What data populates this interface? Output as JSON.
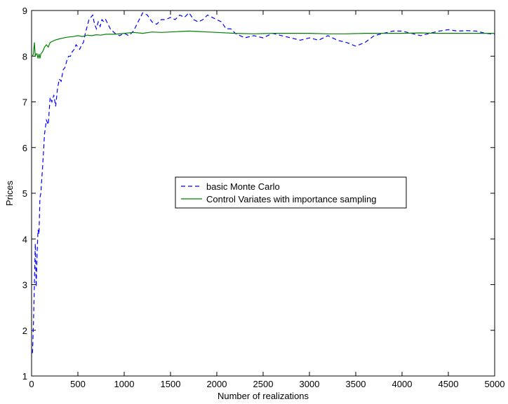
{
  "chart_data": {
    "type": "line",
    "title": "",
    "xlabel": "Number of realizations",
    "ylabel": "Prices",
    "xlim": [
      0,
      5000
    ],
    "ylim": [
      1,
      9
    ],
    "xticks": [
      0,
      500,
      1000,
      1500,
      2000,
      2500,
      3000,
      3500,
      4000,
      4500,
      5000
    ],
    "yticks": [
      1,
      2,
      3,
      4,
      5,
      6,
      7,
      8,
      9
    ],
    "grid": false,
    "legend_position": "center-right",
    "series": [
      {
        "name": "basic Monte Carlo",
        "style": "dashed",
        "color": "#0000ff",
        "x": [
          10,
          20,
          30,
          40,
          50,
          60,
          70,
          80,
          90,
          100,
          120,
          140,
          160,
          180,
          200,
          220,
          240,
          260,
          280,
          300,
          320,
          340,
          360,
          380,
          400,
          420,
          440,
          460,
          480,
          500,
          520,
          540,
          560,
          580,
          600,
          620,
          640,
          660,
          680,
          700,
          720,
          740,
          760,
          780,
          800,
          850,
          900,
          950,
          1000,
          1050,
          1100,
          1150,
          1200,
          1250,
          1300,
          1350,
          1400,
          1450,
          1500,
          1550,
          1600,
          1650,
          1700,
          1750,
          1800,
          1850,
          1900,
          1950,
          2000,
          2050,
          2100,
          2150,
          2200,
          2300,
          2400,
          2500,
          2600,
          2700,
          2800,
          2900,
          3000,
          3100,
          3200,
          3300,
          3400,
          3500,
          3600,
          3700,
          3800,
          3900,
          4000,
          4100,
          4200,
          4300,
          4400,
          4500,
          4600,
          4700,
          4800,
          4900,
          5000
        ],
        "values": [
          1.5,
          2.1,
          3.0,
          3.9,
          2.95,
          3.7,
          4.2,
          4.1,
          4.9,
          5.0,
          5.6,
          6.3,
          6.6,
          6.5,
          7.1,
          7.0,
          7.15,
          6.9,
          7.3,
          7.5,
          7.45,
          7.7,
          7.75,
          7.9,
          8.0,
          8.0,
          8.1,
          8.15,
          8.25,
          8.2,
          8.15,
          8.25,
          8.3,
          8.5,
          8.65,
          8.8,
          8.85,
          8.9,
          8.7,
          8.6,
          8.75,
          8.65,
          8.8,
          8.75,
          8.8,
          8.6,
          8.5,
          8.45,
          8.5,
          8.45,
          8.55,
          8.75,
          8.95,
          8.9,
          8.75,
          8.7,
          8.8,
          8.8,
          8.85,
          8.8,
          8.9,
          8.85,
          8.95,
          8.8,
          8.75,
          8.8,
          8.9,
          8.85,
          8.8,
          8.75,
          8.6,
          8.6,
          8.5,
          8.4,
          8.45,
          8.4,
          8.5,
          8.45,
          8.4,
          8.35,
          8.4,
          8.35,
          8.45,
          8.35,
          8.3,
          8.22,
          8.3,
          8.45,
          8.5,
          8.55,
          8.55,
          8.5,
          8.45,
          8.5,
          8.55,
          8.58,
          8.55,
          8.56,
          8.55,
          8.5,
          8.48
        ]
      },
      {
        "name": "Control Variates with importance sampling",
        "style": "solid",
        "color": "#008000",
        "x": [
          10,
          20,
          30,
          40,
          50,
          60,
          70,
          80,
          90,
          100,
          120,
          140,
          160,
          180,
          200,
          250,
          300,
          350,
          400,
          450,
          500,
          550,
          600,
          650,
          700,
          750,
          800,
          900,
          1000,
          1100,
          1200,
          1300,
          1400,
          1500,
          1600,
          1700,
          1800,
          1900,
          2000,
          2200,
          2400,
          2600,
          2800,
          3000,
          3200,
          3400,
          3600,
          3800,
          4000,
          4200,
          4400,
          4600,
          4800,
          5000
        ],
        "values": [
          8.0,
          8.05,
          8.3,
          8.0,
          8.05,
          8.05,
          7.95,
          8.05,
          7.95,
          8.05,
          8.1,
          8.2,
          8.25,
          8.2,
          8.3,
          8.35,
          8.38,
          8.4,
          8.42,
          8.43,
          8.45,
          8.43,
          8.46,
          8.45,
          8.47,
          8.46,
          8.48,
          8.48,
          8.5,
          8.52,
          8.5,
          8.53,
          8.52,
          8.53,
          8.54,
          8.55,
          8.54,
          8.53,
          8.52,
          8.5,
          8.49,
          8.5,
          8.5,
          8.5,
          8.49,
          8.49,
          8.5,
          8.5,
          8.5,
          8.51,
          8.5,
          8.5,
          8.5,
          8.5
        ]
      }
    ]
  }
}
